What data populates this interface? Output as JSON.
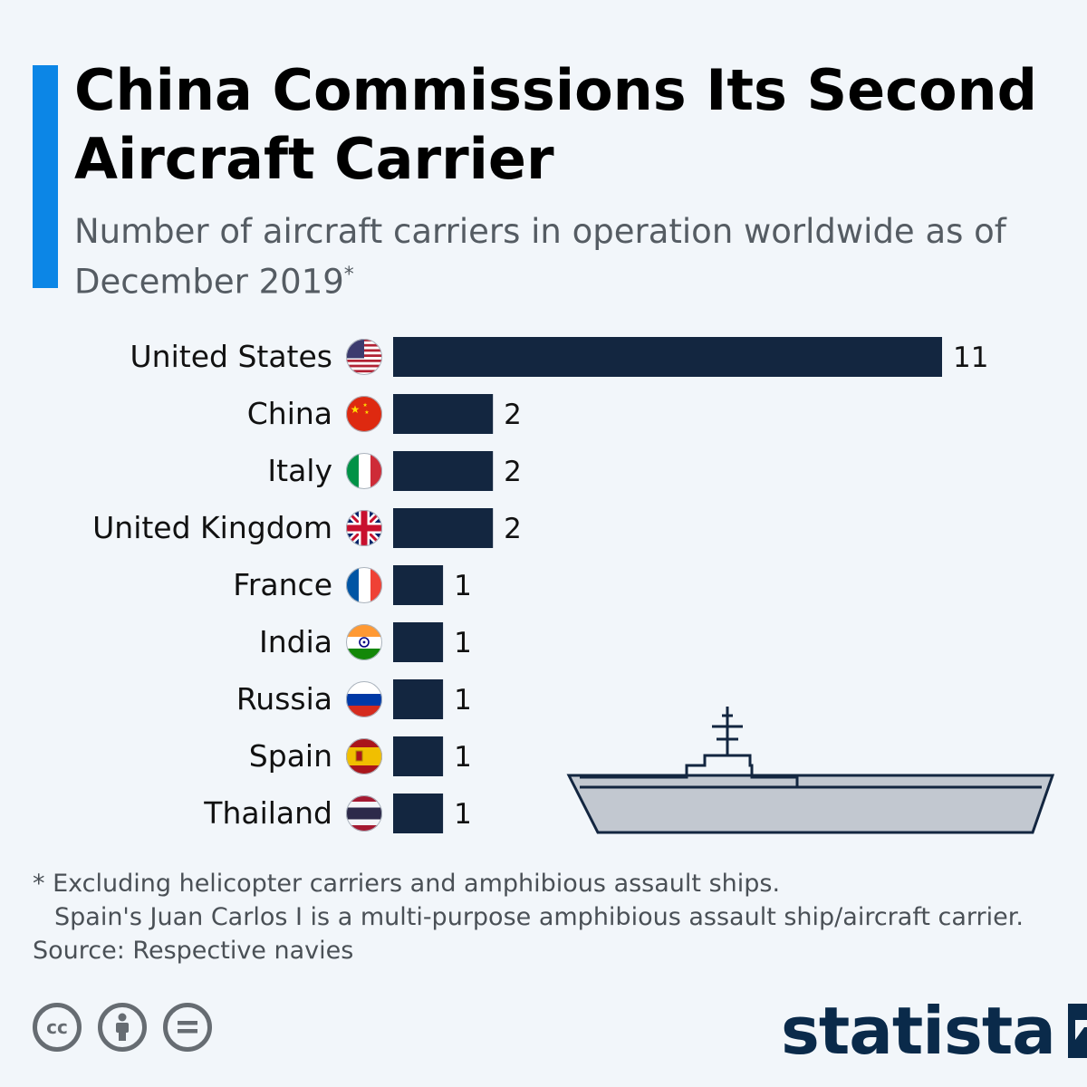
{
  "title": "China Commissions Its Second Aircraft Carrier",
  "subtitle": "Number of aircraft carriers in operation worldwide as of December 2019",
  "subtitle_mark": "*",
  "colors": {
    "bar": "#132640",
    "accent": "#0c86e6",
    "ship_fill": "#c2c8d0",
    "ship_outline": "#132640"
  },
  "chart_data": {
    "type": "bar",
    "orientation": "horizontal",
    "categories": [
      "United States",
      "China",
      "Italy",
      "United Kingdom",
      "France",
      "India",
      "Russia",
      "Spain",
      "Thailand"
    ],
    "values": [
      11,
      2,
      2,
      2,
      1,
      1,
      1,
      1,
      1
    ],
    "flag_icons": [
      "flag-us-icon",
      "flag-cn-icon",
      "flag-it-icon",
      "flag-gb-icon",
      "flag-fr-icon",
      "flag-in-icon",
      "flag-ru-icon",
      "flag-es-icon",
      "flag-th-icon"
    ],
    "xlim": [
      0,
      11
    ],
    "grid": false,
    "legend": false
  },
  "footnotes": {
    "line1": "* Excluding helicopter carriers and amphibious assault ships.",
    "line2": "Spain's Juan Carlos I is a multi-purpose amphibious assault ship/aircraft carrier.",
    "source": "Source: Respective navies"
  },
  "license_icons": [
    "cc-icon",
    "attribution-icon",
    "no-derivatives-icon"
  ],
  "brand": "statista"
}
